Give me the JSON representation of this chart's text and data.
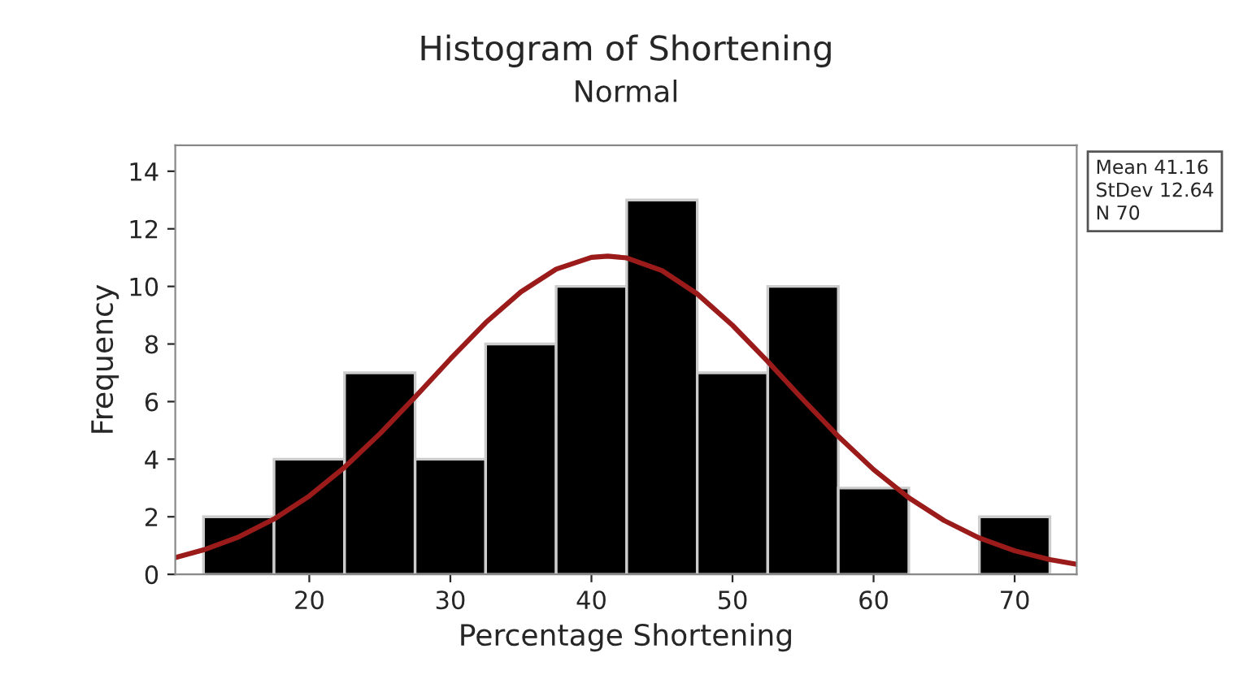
{
  "chart_data": {
    "type": "histogram",
    "title": "Histogram of Shortening",
    "subtitle": "Normal",
    "xlabel": "Percentage Shortening",
    "ylabel": "Frequency",
    "bins": [
      12.5,
      17.5,
      22.5,
      27.5,
      32.5,
      37.5,
      42.5,
      47.5,
      52.5,
      57.5,
      62.5,
      67.5,
      72.5
    ],
    "values": [
      2,
      4,
      7,
      4,
      8,
      10,
      13,
      7,
      10,
      3,
      0,
      2
    ],
    "color": "#000000",
    "series": [
      {
        "type": "line",
        "color": "#9b1b1b",
        "x": [
          10.5,
          12.5,
          15,
          17.5,
          20,
          22.5,
          25,
          27.5,
          30,
          32.5,
          35,
          37.5,
          40,
          41.16,
          42.5,
          45,
          47.5,
          50,
          52.5,
          55,
          57.5,
          60,
          62.5,
          65,
          67.5,
          70,
          72.5,
          74.4
        ],
        "values": [
          0.58,
          0.85,
          1.3,
          1.92,
          2.72,
          3.72,
          4.88,
          6.16,
          7.48,
          8.74,
          9.81,
          10.6,
          11.01,
          11.05,
          10.99,
          10.55,
          9.74,
          8.65,
          7.39,
          6.07,
          4.79,
          3.64,
          2.66,
          1.87,
          1.26,
          0.82,
          0.51,
          0.35
        ]
      }
    ],
    "xlim": [
      10.5,
      74.4
    ],
    "xticks": [
      20,
      30,
      40,
      50,
      60,
      70
    ],
    "ylim": [
      0,
      14.9
    ],
    "yticks": [
      0,
      2,
      4,
      6,
      8,
      10,
      12,
      14
    ],
    "annotations": [
      "Mean 41.16",
      "StDev 12.64",
      "N 70"
    ],
    "grid": false,
    "legend": false
  }
}
